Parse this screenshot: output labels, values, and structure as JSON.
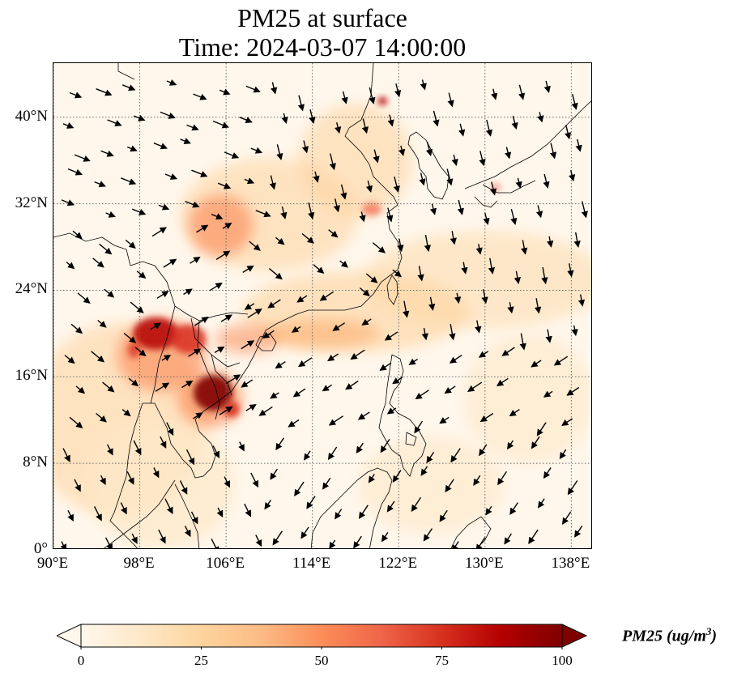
{
  "title": {
    "line1": "PM25 at surface",
    "line2": "Time: 2024-03-07 14:00:00"
  },
  "map": {
    "extent": {
      "lon_min": 90,
      "lon_max": 140,
      "lat_min": 0,
      "lat_max": 45
    },
    "gridlines": "on",
    "x_ticks": [
      {
        "value": 90,
        "label": "90°E"
      },
      {
        "value": 98,
        "label": "98°E"
      },
      {
        "value": 106,
        "label": "106°E"
      },
      {
        "value": 114,
        "label": "114°E"
      },
      {
        "value": 122,
        "label": "122°E"
      },
      {
        "value": 130,
        "label": "130°E"
      },
      {
        "value": 138,
        "label": "138°E"
      }
    ],
    "y_ticks": [
      {
        "value": 0,
        "label": "0°"
      },
      {
        "value": 8,
        "label": "8°N"
      },
      {
        "value": 16,
        "label": "16°N"
      },
      {
        "value": 24,
        "label": "24°N"
      },
      {
        "value": 32,
        "label": "32°N"
      },
      {
        "value": 40,
        "label": "40°N"
      }
    ],
    "colors": {
      "background": "#fff7ec",
      "coastline": "#000000",
      "gridline": "#666666",
      "wind_arrow": "#000000"
    },
    "pollution_hotspots": [
      {
        "name": "northern-laos-myanmar",
        "lon": 101,
        "lat": 19.5,
        "level": "high"
      },
      {
        "name": "cambodia",
        "lon": 104.5,
        "lat": 14.5,
        "level": "high"
      },
      {
        "name": "sichuan-basin",
        "lon": 105,
        "lat": 29.5,
        "level": "moderate"
      },
      {
        "name": "south-china-sea-plume",
        "lon": 115,
        "lat": 20,
        "level": "moderate"
      },
      {
        "name": "north-china-plain",
        "lon": 116,
        "lat": 36,
        "level": "low-moderate"
      }
    ]
  },
  "colorbar": {
    "label_main": "PM25 (ug/m",
    "label_sup": "3",
    "label_close": ")",
    "min": 0,
    "max": 100,
    "extend": "both",
    "colormap": "OrRd",
    "stops": [
      "#fff7ec",
      "#fee8c8",
      "#fdd49e",
      "#fdbb84",
      "#fc8d59",
      "#ef6548",
      "#d7301f",
      "#b30000",
      "#7f0000"
    ],
    "ticks": [
      {
        "value": 0,
        "label": "0"
      },
      {
        "value": 25,
        "label": "25"
      },
      {
        "value": 50,
        "label": "50"
      },
      {
        "value": 75,
        "label": "75"
      },
      {
        "value": 100,
        "label": "100"
      }
    ]
  }
}
